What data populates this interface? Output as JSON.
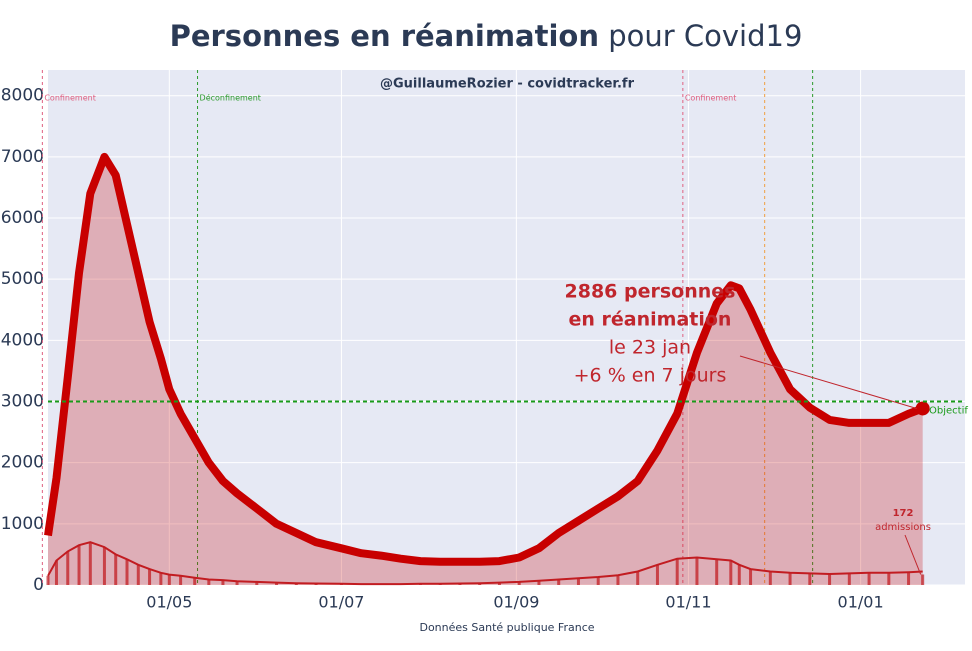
{
  "chart_data": {
    "type": "line",
    "title": "Personnes en réanimation",
    "title_suffix": "pour Covid19",
    "subtitle": "@GuillaumeRozier - covidtracker.fr",
    "xlabel": "Données Santé publique France",
    "x": [
      "19/03",
      "22/03",
      "26/03",
      "30/03",
      "03/04",
      "08/04",
      "12/04",
      "16/04",
      "20/04",
      "24/04",
      "28/04",
      "01/05",
      "05/05",
      "10/05",
      "15/05",
      "20/05",
      "25/05",
      "01/06",
      "08/06",
      "15/06",
      "22/06",
      "01/07",
      "08/07",
      "15/07",
      "22/07",
      "29/07",
      "05/08",
      "12/08",
      "19/08",
      "26/08",
      "02/09",
      "09/09",
      "16/09",
      "23/09",
      "30/09",
      "07/10",
      "14/10",
      "21/10",
      "28/10",
      "04/11",
      "11/11",
      "16/11",
      "19/11",
      "23/11",
      "30/11",
      "07/12",
      "14/12",
      "21/12",
      "28/12",
      "04/01",
      "11/01",
      "18/01",
      "23/01"
    ],
    "series": [
      {
        "kind": "bar",
        "color": "#c0262d",
        "values": [
          150,
          400,
          550,
          650,
          700,
          620,
          500,
          420,
          330,
          260,
          200,
          170,
          150,
          120,
          90,
          80,
          60,
          50,
          40,
          30,
          25,
          20,
          15,
          15,
          15,
          20,
          20,
          25,
          30,
          40,
          50,
          70,
          90,
          110,
          130,
          160,
          220,
          330,
          430,
          450,
          420,
          400,
          330,
          260,
          220,
          200,
          190,
          180,
          190,
          200,
          200,
          210,
          172
        ]
      },
      {
        "kind": "line",
        "color": "#c0262d",
        "values": [
          150,
          400,
          550,
          650,
          700,
          620,
          500,
          420,
          330,
          260,
          200,
          170,
          150,
          120,
          90,
          80,
          60,
          50,
          40,
          30,
          25,
          20,
          15,
          15,
          15,
          20,
          20,
          25,
          30,
          40,
          50,
          70,
          90,
          110,
          130,
          160,
          220,
          330,
          430,
          450,
          420,
          400,
          330,
          260,
          220,
          200,
          190,
          180,
          190,
          200,
          200,
          210,
          220
        ]
      },
      {
        "kind": "area",
        "color": "#c80000",
        "values": [
          810,
          1750,
          3400,
          5100,
          6400,
          7000,
          6700,
          5900,
          5100,
          4300,
          3700,
          3200,
          2800,
          2400,
          2000,
          1700,
          1500,
          1250,
          1000,
          850,
          700,
          600,
          520,
          480,
          430,
          390,
          380,
          380,
          380,
          390,
          450,
          600,
          850,
          1050,
          1250,
          1450,
          1700,
          2200,
          2800,
          3800,
          4600,
          4900,
          4850,
          4500,
          3800,
          3200,
          2900,
          2700,
          2650,
          2650,
          2650,
          2800,
          2886
        ]
      }
    ],
    "xlim": [
      "19/03",
      "07/02"
    ],
    "xticks": [
      "01/05",
      "01/07",
      "01/09",
      "01/11",
      "01/01"
    ],
    "ylim": [
      0,
      8420
    ],
    "yticks": [
      0,
      1000,
      2000,
      3000,
      4000,
      5000,
      6000,
      7000,
      8000
    ],
    "grid": true,
    "vlines": [
      {
        "x": "17/03",
        "label": "Confinement",
        "color": "#e06080"
      },
      {
        "x": "11/05",
        "label": "Déconfinement",
        "color": "#2a9a2a"
      },
      {
        "x": "30/10",
        "label": "Confinement",
        "color": "#e06080"
      },
      {
        "x": "28/11",
        "color": "#f0a040"
      },
      {
        "x": "15/12",
        "color": "#2a9a2a"
      }
    ],
    "hline": {
      "y": 3000,
      "label": "Objectif",
      "color": "#1a9a1a"
    },
    "annotations": [
      {
        "lines": [
          "2886 personnes",
          "en réanimation",
          "le 23 jan",
          "+6 % en 7 jours"
        ]
      },
      {
        "lines": [
          "172",
          "admissions"
        ]
      }
    ]
  }
}
